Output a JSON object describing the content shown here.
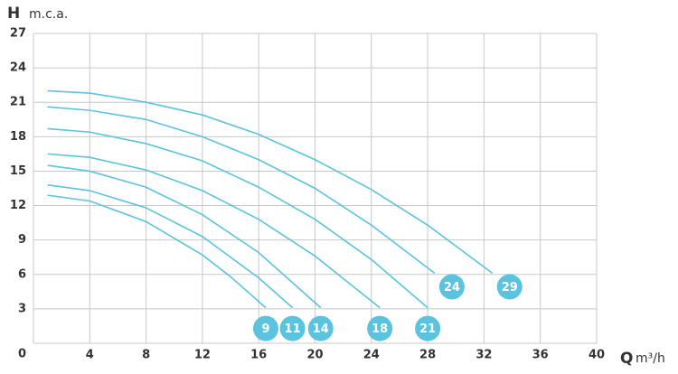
{
  "chart_data": {
    "type": "line",
    "y_label": "H",
    "y_unit": "m.c.a.",
    "x_label": "Q",
    "x_unit": "m³/h",
    "xlim": [
      0,
      40
    ],
    "xticks": [
      4,
      8,
      12,
      16,
      20,
      24,
      28,
      32,
      36,
      40
    ],
    "ylim": [
      0,
      27
    ],
    "yticks": [
      0,
      3,
      6,
      9,
      12,
      15,
      18,
      21,
      24,
      27
    ],
    "grid": true,
    "color": "#5cc3df",
    "series": [
      {
        "name": "9",
        "x": [
          1,
          4,
          8,
          12,
          14,
          16.5
        ],
        "values": [
          12.9,
          12.4,
          10.6,
          7.7,
          5.8,
          3.1
        ]
      },
      {
        "name": "11",
        "x": [
          1,
          4,
          8,
          12,
          16,
          18.4
        ],
        "values": [
          13.8,
          13.3,
          11.8,
          9.3,
          5.7,
          3.1
        ]
      },
      {
        "name": "14",
        "x": [
          1,
          4,
          8,
          12,
          16,
          20.4
        ],
        "values": [
          15.5,
          15.0,
          13.6,
          11.2,
          7.9,
          3.1
        ]
      },
      {
        "name": "18",
        "x": [
          1,
          4,
          8,
          12,
          16,
          20,
          24.6
        ],
        "values": [
          16.5,
          16.2,
          15.1,
          13.3,
          10.8,
          7.6,
          3.1
        ]
      },
      {
        "name": "21",
        "x": [
          1,
          4,
          8,
          12,
          16,
          20,
          24,
          28
        ],
        "values": [
          18.7,
          18.4,
          17.4,
          15.9,
          13.6,
          10.8,
          7.3,
          3.1
        ]
      },
      {
        "name": "24",
        "x": [
          1,
          4,
          8,
          12,
          16,
          20,
          24,
          28.5
        ],
        "values": [
          20.6,
          20.3,
          19.5,
          18.0,
          16.0,
          13.5,
          10.3,
          6.1
        ]
      },
      {
        "name": "29",
        "x": [
          1,
          4,
          8,
          12,
          16,
          20,
          24,
          28,
          32.6
        ],
        "values": [
          22.0,
          21.8,
          21.0,
          19.9,
          18.2,
          16.0,
          13.4,
          10.3,
          6.1
        ]
      }
    ]
  }
}
